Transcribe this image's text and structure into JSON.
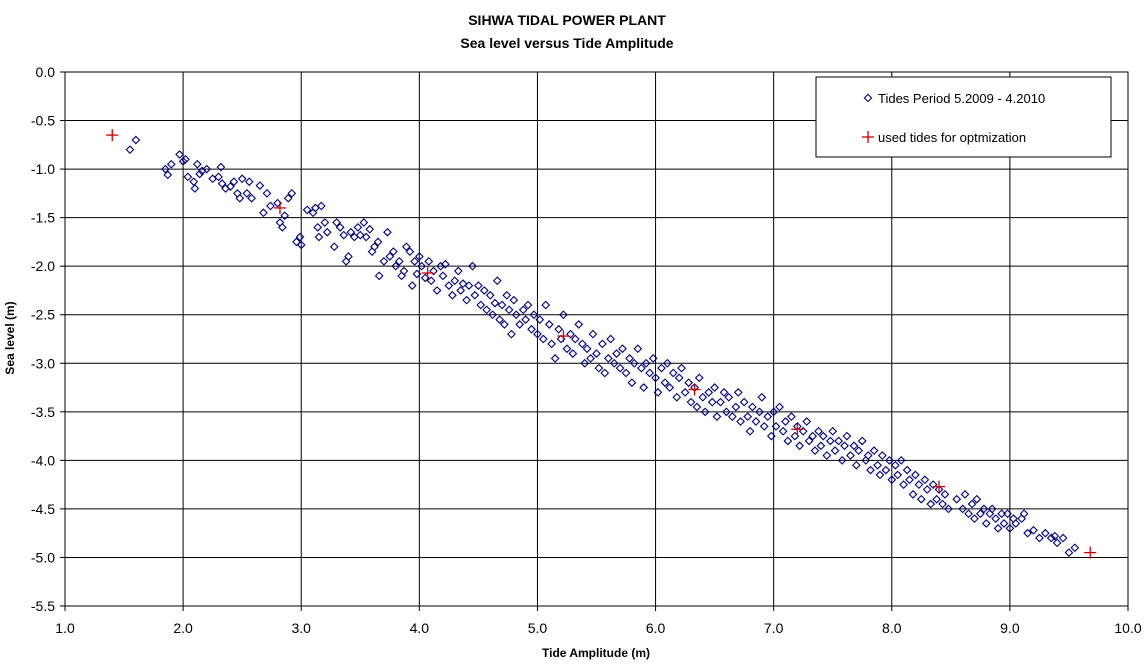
{
  "chart_data": {
    "type": "scatter",
    "title": "SIHWA TIDAL POWER PLANT",
    "subtitle": "Sea level versus Tide  Amplitude",
    "xlabel": "Tide Amplitude (m)",
    "ylabel": "Sea level (m)",
    "xlim": [
      1.0,
      10.0
    ],
    "ylim": [
      -5.5,
      0.0
    ],
    "xticks": [
      "1.0",
      "2.0",
      "3.0",
      "4.0",
      "5.0",
      "6.0",
      "7.0",
      "8.0",
      "9.0",
      "10.0"
    ],
    "yticks": [
      "0.0",
      "-0.5",
      "-1.0",
      "-1.5",
      "-2.0",
      "-2.5",
      "-3.0",
      "-3.5",
      "-4.0",
      "-4.5",
      "-5.0",
      "-5.5"
    ],
    "grid": true,
    "legend_position": "top-right",
    "series": [
      {
        "name": "Tides Period 5.2009 - 4.2010",
        "marker": "diamond",
        "color": "#000080",
        "points": [
          [
            1.55,
            -0.8
          ],
          [
            1.6,
            -0.7
          ],
          [
            1.85,
            -1.0
          ],
          [
            1.87,
            -1.06
          ],
          [
            1.9,
            -0.95
          ],
          [
            1.97,
            -0.85
          ],
          [
            2.0,
            -0.92
          ],
          [
            2.02,
            -0.9
          ],
          [
            2.04,
            -1.08
          ],
          [
            2.09,
            -1.13
          ],
          [
            2.1,
            -1.2
          ],
          [
            2.12,
            -0.95
          ],
          [
            2.14,
            -1.05
          ],
          [
            2.16,
            -1.02
          ],
          [
            2.2,
            -1.0
          ],
          [
            2.25,
            -1.1
          ],
          [
            2.3,
            -1.08
          ],
          [
            2.32,
            -0.98
          ],
          [
            2.33,
            -1.15
          ],
          [
            2.36,
            -1.2
          ],
          [
            2.4,
            -1.18
          ],
          [
            2.43,
            -1.13
          ],
          [
            2.46,
            -1.25
          ],
          [
            2.48,
            -1.3
          ],
          [
            2.5,
            -1.1
          ],
          [
            2.54,
            -1.25
          ],
          [
            2.56,
            -1.13
          ],
          [
            2.58,
            -1.3
          ],
          [
            2.65,
            -1.17
          ],
          [
            2.68,
            -1.45
          ],
          [
            2.71,
            -1.25
          ],
          [
            2.74,
            -1.38
          ],
          [
            2.8,
            -1.35
          ],
          [
            2.82,
            -1.55
          ],
          [
            2.84,
            -1.6
          ],
          [
            2.86,
            -1.48
          ],
          [
            2.89,
            -1.3
          ],
          [
            2.92,
            -1.25
          ],
          [
            2.96,
            -1.75
          ],
          [
            2.99,
            -1.7
          ],
          [
            3.0,
            -1.78
          ],
          [
            3.05,
            -1.42
          ],
          [
            3.1,
            -1.45
          ],
          [
            3.12,
            -1.4
          ],
          [
            3.14,
            -1.6
          ],
          [
            3.15,
            -1.7
          ],
          [
            3.17,
            -1.38
          ],
          [
            3.2,
            -1.55
          ],
          [
            3.22,
            -1.65
          ],
          [
            3.28,
            -1.8
          ],
          [
            3.3,
            -1.55
          ],
          [
            3.33,
            -1.6
          ],
          [
            3.36,
            -1.68
          ],
          [
            3.38,
            -1.95
          ],
          [
            3.4,
            -1.9
          ],
          [
            3.42,
            -1.65
          ],
          [
            3.45,
            -1.7
          ],
          [
            3.48,
            -1.6
          ],
          [
            3.5,
            -1.68
          ],
          [
            3.53,
            -1.55
          ],
          [
            3.55,
            -1.7
          ],
          [
            3.58,
            -1.62
          ],
          [
            3.6,
            -1.85
          ],
          [
            3.62,
            -1.8
          ],
          [
            3.65,
            -1.75
          ],
          [
            3.66,
            -2.1
          ],
          [
            3.7,
            -1.95
          ],
          [
            3.73,
            -1.65
          ],
          [
            3.75,
            -1.9
          ],
          [
            3.78,
            -1.85
          ],
          [
            3.8,
            -2.0
          ],
          [
            3.83,
            -1.95
          ],
          [
            3.85,
            -2.1
          ],
          [
            3.87,
            -2.05
          ],
          [
            3.89,
            -1.8
          ],
          [
            3.92,
            -1.85
          ],
          [
            3.94,
            -2.2
          ],
          [
            3.96,
            -1.95
          ],
          [
            3.98,
            -2.08
          ],
          [
            4.0,
            -1.9
          ],
          [
            4.02,
            -2.0
          ],
          [
            4.05,
            -2.12
          ],
          [
            4.08,
            -1.95
          ],
          [
            4.1,
            -2.15
          ],
          [
            4.12,
            -2.05
          ],
          [
            4.15,
            -2.25
          ],
          [
            4.18,
            -2.0
          ],
          [
            4.2,
            -2.1
          ],
          [
            4.22,
            -1.98
          ],
          [
            4.25,
            -2.2
          ],
          [
            4.28,
            -2.3
          ],
          [
            4.3,
            -2.15
          ],
          [
            4.33,
            -2.05
          ],
          [
            4.35,
            -2.25
          ],
          [
            4.37,
            -2.18
          ],
          [
            4.4,
            -2.35
          ],
          [
            4.42,
            -2.2
          ],
          [
            4.45,
            -2.0
          ],
          [
            4.47,
            -2.3
          ],
          [
            4.5,
            -2.2
          ],
          [
            4.52,
            -2.4
          ],
          [
            4.55,
            -2.25
          ],
          [
            4.57,
            -2.45
          ],
          [
            4.6,
            -2.3
          ],
          [
            4.62,
            -2.5
          ],
          [
            4.64,
            -2.38
          ],
          [
            4.66,
            -2.15
          ],
          [
            4.68,
            -2.55
          ],
          [
            4.7,
            -2.4
          ],
          [
            4.72,
            -2.6
          ],
          [
            4.74,
            -2.3
          ],
          [
            4.76,
            -2.45
          ],
          [
            4.78,
            -2.7
          ],
          [
            4.8,
            -2.35
          ],
          [
            4.82,
            -2.5
          ],
          [
            4.85,
            -2.6
          ],
          [
            4.88,
            -2.45
          ],
          [
            4.9,
            -2.55
          ],
          [
            4.92,
            -2.4
          ],
          [
            4.95,
            -2.65
          ],
          [
            4.97,
            -2.5
          ],
          [
            5.0,
            -2.7
          ],
          [
            5.02,
            -2.55
          ],
          [
            5.05,
            -2.75
          ],
          [
            5.07,
            -2.4
          ],
          [
            5.1,
            -2.6
          ],
          [
            5.12,
            -2.8
          ],
          [
            5.15,
            -2.95
          ],
          [
            5.18,
            -2.65
          ],
          [
            5.2,
            -2.75
          ],
          [
            5.22,
            -2.5
          ],
          [
            5.25,
            -2.85
          ],
          [
            5.28,
            -2.7
          ],
          [
            5.3,
            -2.9
          ],
          [
            5.32,
            -2.75
          ],
          [
            5.35,
            -2.6
          ],
          [
            5.38,
            -2.8
          ],
          [
            5.4,
            -3.0
          ],
          [
            5.42,
            -2.85
          ],
          [
            5.45,
            -2.95
          ],
          [
            5.47,
            -2.7
          ],
          [
            5.5,
            -2.9
          ],
          [
            5.52,
            -3.05
          ],
          [
            5.55,
            -2.8
          ],
          [
            5.57,
            -3.1
          ],
          [
            5.6,
            -2.95
          ],
          [
            5.62,
            -2.75
          ],
          [
            5.65,
            -3.0
          ],
          [
            5.67,
            -2.9
          ],
          [
            5.7,
            -3.05
          ],
          [
            5.72,
            -2.85
          ],
          [
            5.75,
            -3.1
          ],
          [
            5.78,
            -2.95
          ],
          [
            5.8,
            -3.2
          ],
          [
            5.82,
            -3.0
          ],
          [
            5.85,
            -2.85
          ],
          [
            5.88,
            -3.05
          ],
          [
            5.9,
            -3.25
          ],
          [
            5.92,
            -3.0
          ],
          [
            5.95,
            -3.1
          ],
          [
            5.98,
            -2.95
          ],
          [
            6.0,
            -3.15
          ],
          [
            6.02,
            -3.3
          ],
          [
            6.05,
            -3.05
          ],
          [
            6.08,
            -3.2
          ],
          [
            6.1,
            -3.0
          ],
          [
            6.12,
            -3.25
          ],
          [
            6.15,
            -3.1
          ],
          [
            6.18,
            -3.35
          ],
          [
            6.2,
            -3.15
          ],
          [
            6.22,
            -3.05
          ],
          [
            6.25,
            -3.3
          ],
          [
            6.28,
            -3.2
          ],
          [
            6.3,
            -3.4
          ],
          [
            6.33,
            -3.25
          ],
          [
            6.35,
            -3.45
          ],
          [
            6.37,
            -3.15
          ],
          [
            6.4,
            -3.35
          ],
          [
            6.42,
            -3.5
          ],
          [
            6.45,
            -3.3
          ],
          [
            6.48,
            -3.4
          ],
          [
            6.5,
            -3.25
          ],
          [
            6.52,
            -3.55
          ],
          [
            6.55,
            -3.4
          ],
          [
            6.58,
            -3.3
          ],
          [
            6.6,
            -3.5
          ],
          [
            6.62,
            -3.35
          ],
          [
            6.65,
            -3.55
          ],
          [
            6.68,
            -3.45
          ],
          [
            6.7,
            -3.3
          ],
          [
            6.72,
            -3.6
          ],
          [
            6.75,
            -3.4
          ],
          [
            6.78,
            -3.55
          ],
          [
            6.8,
            -3.7
          ],
          [
            6.82,
            -3.45
          ],
          [
            6.85,
            -3.6
          ],
          [
            6.88,
            -3.5
          ],
          [
            6.9,
            -3.35
          ],
          [
            6.92,
            -3.65
          ],
          [
            6.95,
            -3.55
          ],
          [
            6.98,
            -3.75
          ],
          [
            7.0,
            -3.5
          ],
          [
            7.02,
            -3.65
          ],
          [
            7.05,
            -3.45
          ],
          [
            7.08,
            -3.7
          ],
          [
            7.1,
            -3.6
          ],
          [
            7.12,
            -3.8
          ],
          [
            7.15,
            -3.55
          ],
          [
            7.18,
            -3.75
          ],
          [
            7.2,
            -3.65
          ],
          [
            7.22,
            -3.85
          ],
          [
            7.25,
            -3.7
          ],
          [
            7.28,
            -3.6
          ],
          [
            7.3,
            -3.8
          ],
          [
            7.33,
            -3.75
          ],
          [
            7.35,
            -3.9
          ],
          [
            7.38,
            -3.7
          ],
          [
            7.4,
            -3.85
          ],
          [
            7.42,
            -3.75
          ],
          [
            7.45,
            -3.95
          ],
          [
            7.48,
            -3.8
          ],
          [
            7.5,
            -3.7
          ],
          [
            7.52,
            -3.9
          ],
          [
            7.55,
            -3.8
          ],
          [
            7.58,
            -4.0
          ],
          [
            7.6,
            -3.85
          ],
          [
            7.62,
            -3.75
          ],
          [
            7.65,
            -3.95
          ],
          [
            7.68,
            -3.85
          ],
          [
            7.7,
            -4.05
          ],
          [
            7.72,
            -3.9
          ],
          [
            7.75,
            -3.8
          ],
          [
            7.78,
            -4.0
          ],
          [
            7.8,
            -3.95
          ],
          [
            7.82,
            -4.1
          ],
          [
            7.85,
            -3.9
          ],
          [
            7.88,
            -4.05
          ],
          [
            7.9,
            -4.15
          ],
          [
            7.92,
            -3.95
          ],
          [
            7.95,
            -4.1
          ],
          [
            7.98,
            -4.0
          ],
          [
            8.0,
            -4.2
          ],
          [
            8.03,
            -4.05
          ],
          [
            8.05,
            -4.15
          ],
          [
            8.08,
            -4.0
          ],
          [
            8.1,
            -4.25
          ],
          [
            8.13,
            -4.1
          ],
          [
            8.15,
            -4.2
          ],
          [
            8.18,
            -4.35
          ],
          [
            8.2,
            -4.15
          ],
          [
            8.23,
            -4.25
          ],
          [
            8.25,
            -4.4
          ],
          [
            8.28,
            -4.2
          ],
          [
            8.3,
            -4.3
          ],
          [
            8.33,
            -4.45
          ],
          [
            8.35,
            -4.25
          ],
          [
            8.38,
            -4.4
          ],
          [
            8.4,
            -4.3
          ],
          [
            8.43,
            -4.45
          ],
          [
            8.45,
            -4.35
          ],
          [
            8.48,
            -4.5
          ],
          [
            8.55,
            -4.4
          ],
          [
            8.6,
            -4.5
          ],
          [
            8.62,
            -4.35
          ],
          [
            8.65,
            -4.55
          ],
          [
            8.68,
            -4.45
          ],
          [
            8.7,
            -4.6
          ],
          [
            8.72,
            -4.4
          ],
          [
            8.75,
            -4.55
          ],
          [
            8.78,
            -4.5
          ],
          [
            8.8,
            -4.65
          ],
          [
            8.83,
            -4.55
          ],
          [
            8.85,
            -4.5
          ],
          [
            8.88,
            -4.6
          ],
          [
            8.9,
            -4.7
          ],
          [
            8.93,
            -4.55
          ],
          [
            8.95,
            -4.65
          ],
          [
            8.98,
            -4.55
          ],
          [
            9.0,
            -4.7
          ],
          [
            9.03,
            -4.6
          ],
          [
            9.05,
            -4.65
          ],
          [
            9.1,
            -4.6
          ],
          [
            9.12,
            -4.55
          ],
          [
            9.15,
            -4.75
          ],
          [
            9.2,
            -4.72
          ],
          [
            9.25,
            -4.8
          ],
          [
            9.3,
            -4.75
          ],
          [
            9.35,
            -4.8
          ],
          [
            9.38,
            -4.78
          ],
          [
            9.4,
            -4.85
          ],
          [
            9.45,
            -4.8
          ],
          [
            9.5,
            -4.95
          ],
          [
            9.55,
            -4.9
          ]
        ]
      },
      {
        "name": "used tides for optmization",
        "marker": "plus",
        "color": "#cc0000",
        "points": [
          [
            1.4,
            -0.65
          ],
          [
            2.82,
            -1.4
          ],
          [
            4.07,
            -2.07
          ],
          [
            5.22,
            -2.72
          ],
          [
            6.33,
            -3.27
          ],
          [
            7.2,
            -3.68
          ],
          [
            8.4,
            -4.27
          ],
          [
            9.68,
            -4.95
          ]
        ]
      }
    ]
  }
}
